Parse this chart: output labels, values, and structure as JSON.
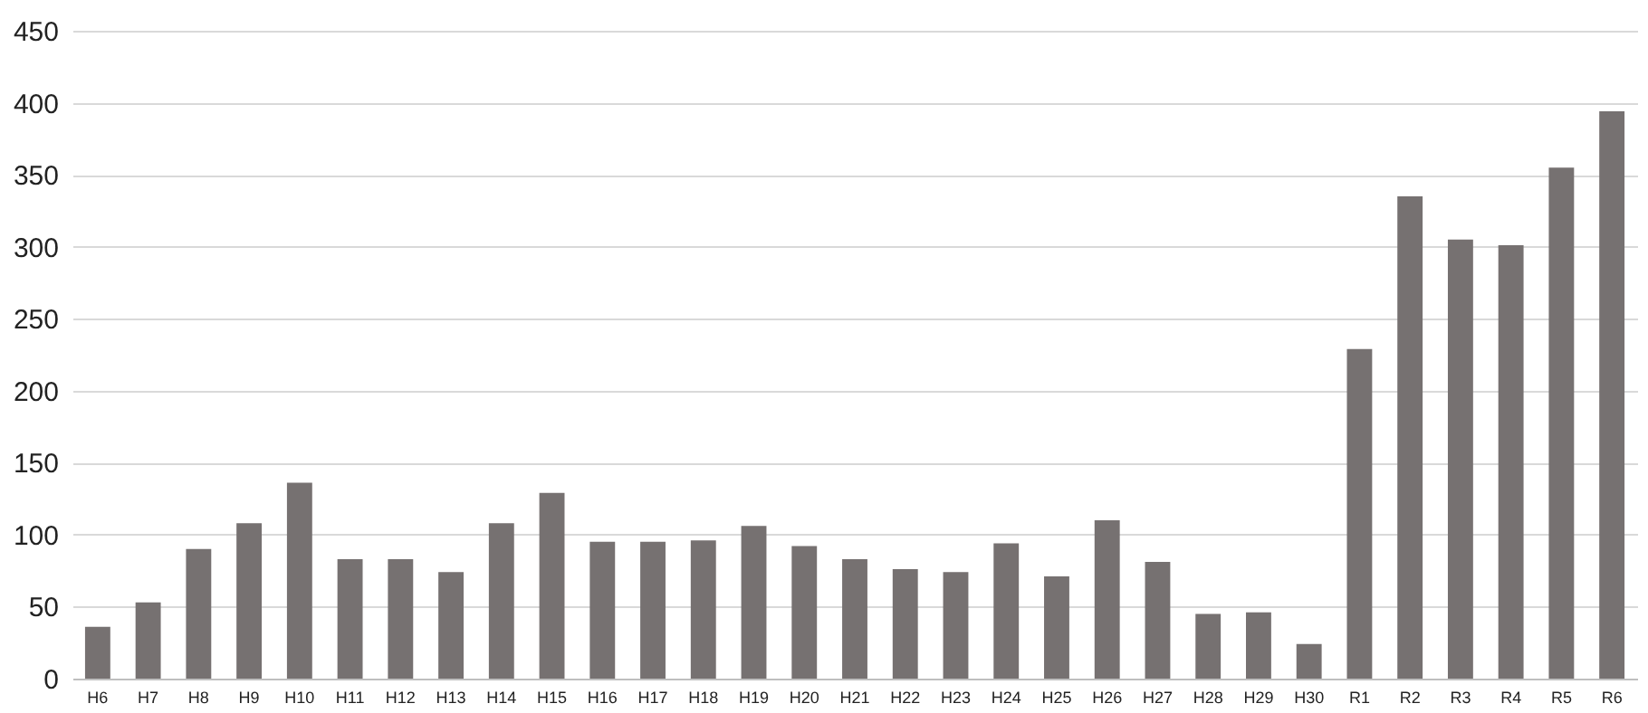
{
  "chart_data": {
    "type": "bar",
    "categories": [
      "H6",
      "H7",
      "H8",
      "H9",
      "H10",
      "H11",
      "H12",
      "H13",
      "H14",
      "H15",
      "H16",
      "H17",
      "H18",
      "H19",
      "H20",
      "H21",
      "H22",
      "H23",
      "H24",
      "H25",
      "H26",
      "H27",
      "H28",
      "H29",
      "H30",
      "R1",
      "R2",
      "R3",
      "R4",
      "R5",
      "R6"
    ],
    "values": [
      36,
      53,
      90,
      108,
      136,
      83,
      83,
      74,
      108,
      129,
      95,
      95,
      96,
      106,
      92,
      83,
      76,
      74,
      94,
      71,
      110,
      81,
      45,
      46,
      24,
      229,
      335,
      305,
      301,
      355,
      394
    ],
    "color": "#767171",
    "ylim": [
      0,
      450
    ],
    "yticks": [
      0,
      50,
      100,
      150,
      200,
      250,
      300,
      350,
      400,
      450
    ],
    "grid": "y"
  }
}
